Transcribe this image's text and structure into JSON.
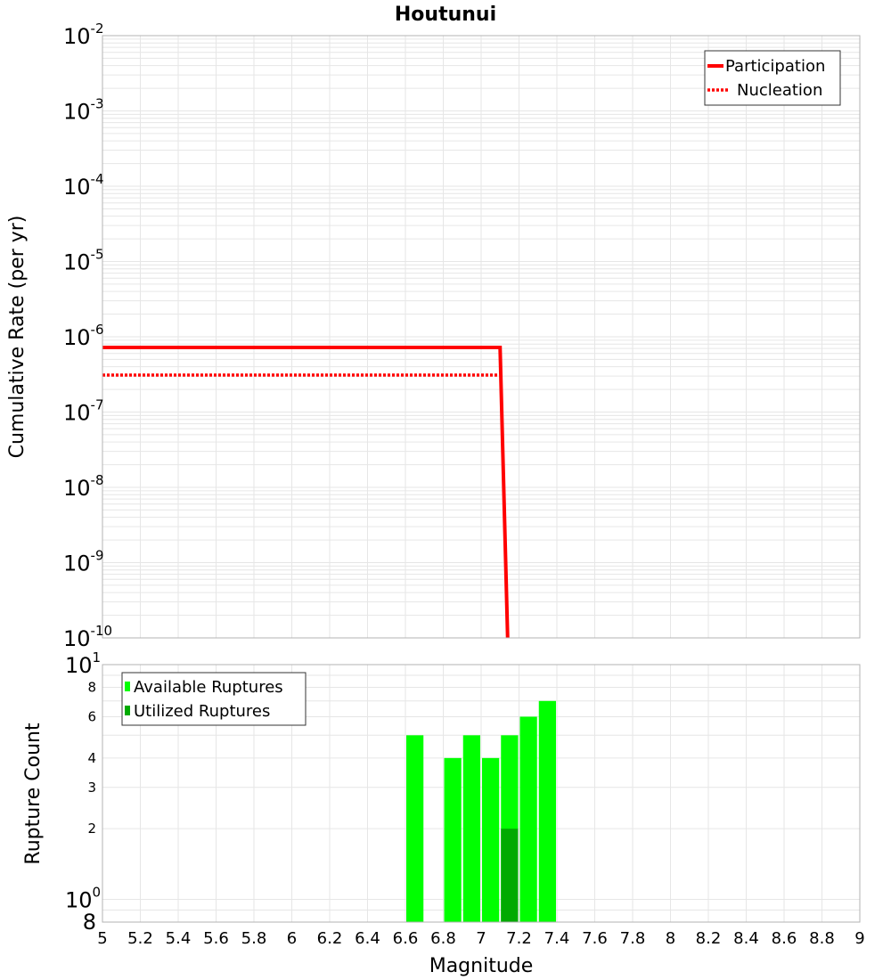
{
  "title": "Houtunui",
  "colors": {
    "participation": "#ff0000",
    "nucleation": "#ff0000",
    "available": "#00ff00",
    "utilized": "#00aa00",
    "grid": "#e6e6e6",
    "frame": "#b3b3b3"
  },
  "chart_data": [
    {
      "type": "line",
      "title": "Houtunui",
      "ylabel": "Cumulative Rate (per yr)",
      "xlabel": "",
      "xlim": [
        5,
        9
      ],
      "ylim": [
        1e-10,
        0.01
      ],
      "yscale": "log",
      "grid": true,
      "legend_position": "top-right",
      "y_tick_labels": [
        {
          "base": "10",
          "exp": "-2",
          "value": 0.01
        },
        {
          "base": "10",
          "exp": "-3",
          "value": 0.001
        },
        {
          "base": "10",
          "exp": "-4",
          "value": 0.0001
        },
        {
          "base": "10",
          "exp": "-5",
          "value": 1e-05
        },
        {
          "base": "10",
          "exp": "-6",
          "value": 1e-06
        },
        {
          "base": "10",
          "exp": "-7",
          "value": 1e-07
        },
        {
          "base": "10",
          "exp": "-8",
          "value": 1e-08
        },
        {
          "base": "10",
          "exp": "-9",
          "value": 1e-09
        },
        {
          "base": "10",
          "exp": "-10",
          "value": 1e-10
        }
      ],
      "series": [
        {
          "name": "Participation",
          "style": "solid",
          "x": [
            5.0,
            7.1,
            7.14
          ],
          "y": [
            7.2e-07,
            7.2e-07,
            1e-10
          ]
        },
        {
          "name": "Nucleation",
          "style": "dotted",
          "x": [
            5.0,
            7.09
          ],
          "y": [
            3.1e-07,
            3.1e-07
          ]
        }
      ]
    },
    {
      "type": "bar",
      "ylabel": "Rupture Count",
      "xlabel": "Magnitude",
      "xlim": [
        5,
        9
      ],
      "ylim": [
        0.8,
        10
      ],
      "yscale": "log",
      "grid": true,
      "legend_position": "top-left",
      "x_ticks": [
        "5",
        "5.2",
        "5.4",
        "5.6",
        "5.8",
        "6",
        "6.2",
        "6.4",
        "6.6",
        "6.8",
        "7",
        "7.2",
        "7.4",
        "7.6",
        "7.8",
        "8",
        "8.2",
        "8.4",
        "8.6",
        "8.8",
        "9"
      ],
      "y_major_labels": [
        {
          "base": "10",
          "exp": "1",
          "value": 10
        },
        {
          "base": "10",
          "exp": "0",
          "value": 1
        }
      ],
      "y_minor_labels": [
        {
          "label": "8",
          "value": 8
        },
        {
          "label": "6",
          "value": 6
        },
        {
          "label": "4",
          "value": 4
        },
        {
          "label": "3",
          "value": 3
        },
        {
          "label": "2",
          "value": 2
        }
      ],
      "y_bottom_label": {
        "label": "8",
        "value": 0.8
      },
      "bar_width": 0.1,
      "series": [
        {
          "name": "Available Ruptures",
          "x": [
            6.65,
            6.85,
            6.95,
            7.05,
            7.15,
            7.25,
            7.35
          ],
          "values": [
            5,
            4,
            5,
            4,
            5,
            6,
            7
          ]
        },
        {
          "name": "Utilized Ruptures",
          "x": [
            7.15
          ],
          "values": [
            2
          ]
        }
      ]
    }
  ]
}
